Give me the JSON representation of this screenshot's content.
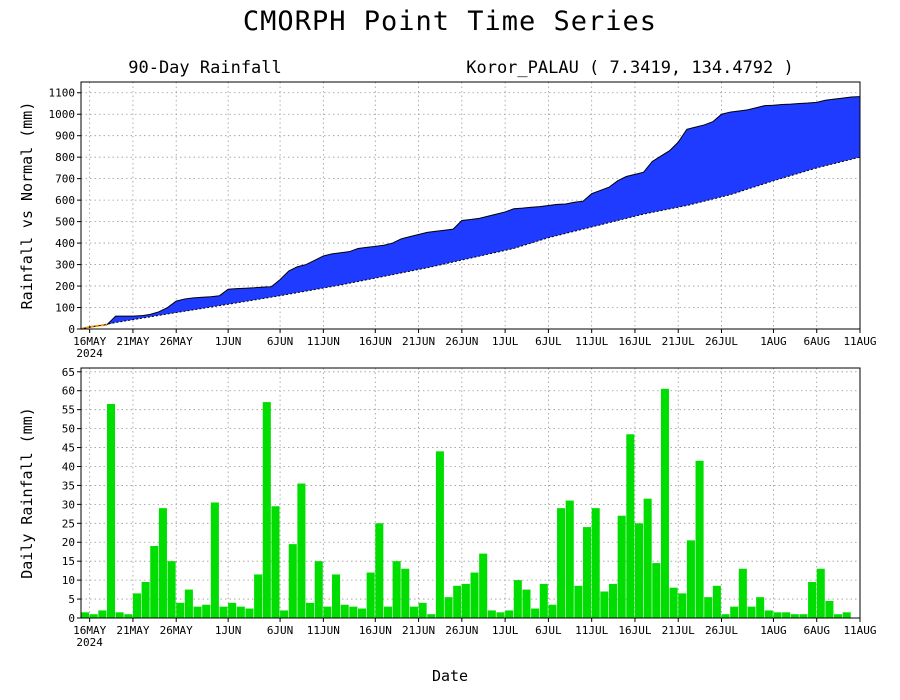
{
  "title": "CMORPH Point Time Series",
  "chart_data": [
    {
      "type": "area",
      "name": "90-day-accumulated",
      "subtitle_left": "90-Day Rainfall",
      "subtitle_right": "Koror_PALAU ( 7.3419, 134.4792 )",
      "ylabel": "Rainfall vs Normal (mm)",
      "xlabel": "",
      "ylim": [
        0,
        1150
      ],
      "yticks": [
        0,
        100,
        200,
        300,
        400,
        500,
        600,
        700,
        800,
        900,
        1000,
        1100
      ],
      "xlim": [
        0,
        90
      ],
      "x_tick_positions": [
        1,
        6,
        11,
        17,
        23,
        28,
        34,
        39,
        44,
        49,
        54,
        59,
        64,
        69,
        74,
        80,
        85,
        90
      ],
      "x_tick_labels": [
        "16MAY",
        "21MAY",
        "26MAY",
        "1JUN",
        "6JUN",
        "11JUN",
        "16JUN",
        "21JUN",
        "26JUN",
        "1JUL",
        "6JUL",
        "11JUL",
        "16JUL",
        "21JUL",
        "26JUL",
        "1AUG",
        "6AUG",
        "11AUG"
      ],
      "x_year_label": "2024",
      "grid": true,
      "actual": [
        [
          0,
          0
        ],
        [
          1,
          10
        ],
        [
          2,
          15
        ],
        [
          3,
          20
        ],
        [
          4,
          60
        ],
        [
          5,
          60
        ],
        [
          6,
          60
        ],
        [
          7,
          62
        ],
        [
          8,
          68
        ],
        [
          9,
          80
        ],
        [
          10,
          100
        ],
        [
          11,
          130
        ],
        [
          12,
          140
        ],
        [
          13,
          145
        ],
        [
          14,
          148
        ],
        [
          15,
          150
        ],
        [
          16,
          155
        ],
        [
          17,
          185
        ],
        [
          18,
          188
        ],
        [
          19,
          190
        ],
        [
          20,
          192
        ],
        [
          21,
          195
        ],
        [
          22,
          197
        ],
        [
          23,
          230
        ],
        [
          24,
          270
        ],
        [
          25,
          290
        ],
        [
          26,
          300
        ],
        [
          27,
          320
        ],
        [
          28,
          340
        ],
        [
          29,
          350
        ],
        [
          30,
          355
        ],
        [
          31,
          360
        ],
        [
          32,
          375
        ],
        [
          33,
          380
        ],
        [
          34,
          385
        ],
        [
          35,
          390
        ],
        [
          36,
          400
        ],
        [
          37,
          420
        ],
        [
          38,
          430
        ],
        [
          39,
          440
        ],
        [
          40,
          450
        ],
        [
          41,
          455
        ],
        [
          42,
          460
        ],
        [
          43,
          465
        ],
        [
          44,
          505
        ],
        [
          45,
          510
        ],
        [
          46,
          515
        ],
        [
          47,
          525
        ],
        [
          48,
          535
        ],
        [
          49,
          545
        ],
        [
          50,
          560
        ],
        [
          51,
          563
        ],
        [
          52,
          567
        ],
        [
          53,
          570
        ],
        [
          54,
          575
        ],
        [
          55,
          580
        ],
        [
          56,
          582
        ],
        [
          57,
          590
        ],
        [
          58,
          595
        ],
        [
          59,
          630
        ],
        [
          60,
          645
        ],
        [
          61,
          660
        ],
        [
          62,
          690
        ],
        [
          63,
          710
        ],
        [
          64,
          720
        ],
        [
          65,
          730
        ],
        [
          66,
          780
        ],
        [
          67,
          805
        ],
        [
          68,
          830
        ],
        [
          69,
          870
        ],
        [
          70,
          930
        ],
        [
          71,
          940
        ],
        [
          72,
          950
        ],
        [
          73,
          965
        ],
        [
          74,
          1000
        ],
        [
          75,
          1010
        ],
        [
          76,
          1015
        ],
        [
          77,
          1020
        ],
        [
          78,
          1030
        ],
        [
          79,
          1040
        ],
        [
          80,
          1042
        ],
        [
          81,
          1045
        ],
        [
          82,
          1047
        ],
        [
          83,
          1050
        ],
        [
          84,
          1052
        ],
        [
          85,
          1055
        ],
        [
          86,
          1065
        ],
        [
          87,
          1070
        ],
        [
          88,
          1075
        ],
        [
          89,
          1080
        ],
        [
          90,
          1082
        ]
      ],
      "normal": [
        [
          0,
          0
        ],
        [
          4,
          30
        ],
        [
          10,
          70
        ],
        [
          17,
          115
        ],
        [
          23,
          155
        ],
        [
          30,
          205
        ],
        [
          35,
          245
        ],
        [
          40,
          285
        ],
        [
          45,
          330
        ],
        [
          50,
          375
        ],
        [
          54,
          425
        ],
        [
          60,
          485
        ],
        [
          65,
          535
        ],
        [
          70,
          575
        ],
        [
          75,
          625
        ],
        [
          80,
          690
        ],
        [
          85,
          750
        ],
        [
          90,
          800
        ]
      ],
      "fill_color": "#1f3bff"
    },
    {
      "type": "bar",
      "name": "daily-rainfall",
      "ylabel": "Daily Rainfall (mm)",
      "xlabel": "Date",
      "ylim": [
        0,
        66
      ],
      "yticks": [
        0,
        5,
        10,
        15,
        20,
        25,
        30,
        35,
        40,
        45,
        50,
        55,
        60,
        65
      ],
      "xlim": [
        0,
        90
      ],
      "x_tick_positions": [
        1,
        6,
        11,
        17,
        23,
        28,
        34,
        39,
        44,
        49,
        54,
        59,
        64,
        69,
        74,
        80,
        85,
        90
      ],
      "x_tick_labels": [
        "16MAY",
        "21MAY",
        "26MAY",
        "1JUN",
        "6JUN",
        "11JUN",
        "16JUN",
        "21JUN",
        "26JUN",
        "1JUL",
        "6JUL",
        "11JUL",
        "16JUL",
        "21JUL",
        "26JUL",
        "1AUG",
        "6AUG",
        "11AUG"
      ],
      "x_year_label": "2024",
      "grid": true,
      "values": [
        1.5,
        1,
        2,
        56.5,
        1.5,
        1,
        6.5,
        9.5,
        19,
        29,
        15,
        4,
        7.5,
        3,
        3.5,
        30.5,
        3,
        4,
        3,
        2.5,
        11.5,
        57,
        29.5,
        2,
        19.5,
        35.5,
        4,
        15,
        3,
        11.5,
        3.5,
        3,
        2.5,
        12,
        25,
        3,
        15,
        13,
        3,
        4,
        1,
        44,
        5.5,
        8.5,
        9,
        12,
        17,
        2,
        1.5,
        2,
        10,
        7.5,
        2.5,
        9,
        3.5,
        29,
        31,
        8.5,
        24,
        29,
        7,
        9,
        27,
        48.5,
        25,
        31.5,
        14.5,
        60.5,
        8,
        6.5,
        20.5,
        41.5,
        5.5,
        8.5,
        1,
        3,
        13,
        3,
        5.5,
        2,
        1.5,
        1.5,
        1,
        1,
        9.5,
        13,
        4.5,
        1,
        1.5
      ],
      "bar_color": "#00dd00"
    }
  ]
}
